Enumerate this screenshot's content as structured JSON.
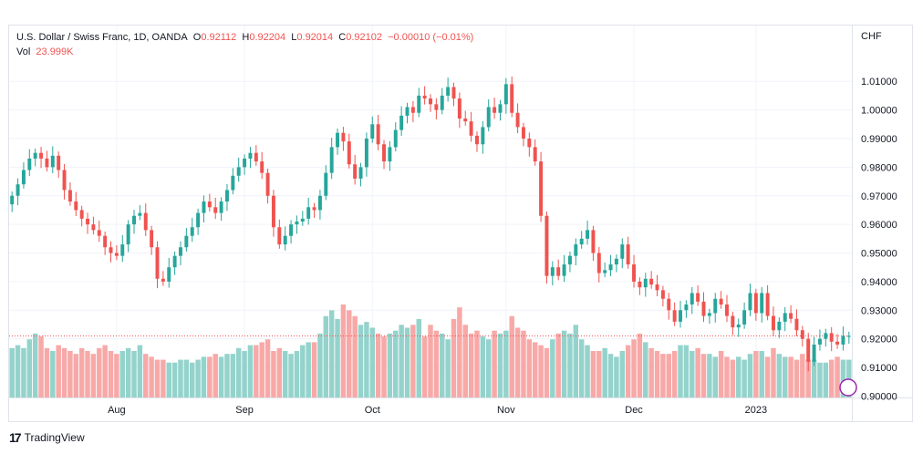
{
  "header": {
    "symbol": "U.S. Dollar / Swiss Franc, 1D, OANDA",
    "open_label": "O",
    "open": "0.92112",
    "high_label": "H",
    "high": "0.92204",
    "low_label": "L",
    "low": "0.92014",
    "close_label": "C",
    "close": "0.92102",
    "change": "−0.00010 (−0.01%)",
    "vol_label": "Vol",
    "vol": "23.999K"
  },
  "currency": "CHF",
  "footer": {
    "brand": "TradingView",
    "logo_icon": "tradingview-logo-icon"
  },
  "colors": {
    "up": "#26a69a",
    "down": "#ef5350",
    "up_vol": "#94d3cc",
    "down_vol": "#f7a9a8",
    "grid": "#f0f3fa"
  },
  "chart_data": {
    "type": "candlestick",
    "y_ticks": [
      "0.90000",
      "0.91000",
      "0.92000",
      "0.93000",
      "0.94000",
      "0.95000",
      "0.96000",
      "0.97000",
      "0.98000",
      "0.99000",
      "1.00000",
      "1.01000"
    ],
    "ylim": [
      0.8995,
      1.0225
    ],
    "x_ticks": [
      {
        "label": "Aug",
        "index": 18
      },
      {
        "label": "Sep",
        "index": 40
      },
      {
        "label": "Oct",
        "index": 62
      },
      {
        "label": "Nov",
        "index": 85
      },
      {
        "label": "Dec",
        "index": 107
      },
      {
        "label": "2023",
        "index": 128
      }
    ],
    "last_close": 0.92102,
    "closes": [
      0.97,
      0.974,
      0.979,
      0.983,
      0.985,
      0.983,
      0.98,
      0.984,
      0.979,
      0.972,
      0.968,
      0.965,
      0.962,
      0.96,
      0.958,
      0.956,
      0.952,
      0.95,
      0.949,
      0.953,
      0.96,
      0.963,
      0.964,
      0.958,
      0.952,
      0.941,
      0.94,
      0.945,
      0.949,
      0.952,
      0.956,
      0.959,
      0.964,
      0.968,
      0.966,
      0.964,
      0.968,
      0.972,
      0.977,
      0.98,
      0.983,
      0.985,
      0.982,
      0.978,
      0.97,
      0.959,
      0.953,
      0.956,
      0.96,
      0.961,
      0.962,
      0.966,
      0.965,
      0.97,
      0.978,
      0.987,
      0.992,
      0.989,
      0.981,
      0.976,
      0.98,
      0.99,
      0.995,
      0.988,
      0.982,
      0.987,
      0.993,
      0.998,
      1.001,
      0.999,
      1.005,
      1.004,
      1.002,
      1.0,
      1.005,
      1.008,
      1.004,
      0.997,
      0.996,
      0.991,
      0.988,
      0.994,
      1.001,
      0.999,
      1.002,
      1.009,
      0.999,
      0.994,
      0.99,
      0.987,
      0.982,
      0.963,
      0.942,
      0.945,
      0.942,
      0.946,
      0.949,
      0.953,
      0.955,
      0.958,
      0.95,
      0.943,
      0.944,
      0.946,
      0.948,
      0.953,
      0.946,
      0.94,
      0.938,
      0.941,
      0.939,
      0.937,
      0.934,
      0.93,
      0.926,
      0.93,
      0.932,
      0.936,
      0.933,
      0.928,
      0.929,
      0.934,
      0.932,
      0.928,
      0.924,
      0.925,
      0.93,
      0.936,
      0.929,
      0.936,
      0.928,
      0.923,
      0.926,
      0.929,
      0.927,
      0.923,
      0.92,
      0.912,
      0.918,
      0.92,
      0.922,
      0.919,
      0.918,
      0.921,
      0.921
    ],
    "volume_label": "Vol",
    "volumes": [
      17,
      18,
      17,
      20,
      22,
      21,
      17,
      16,
      18,
      17,
      16,
      15,
      17,
      16,
      15,
      17,
      18,
      16,
      15,
      16,
      17,
      16,
      18,
      15,
      14,
      13,
      13,
      12,
      12,
      13,
      13,
      12,
      13,
      14,
      14,
      15,
      14,
      15,
      15,
      17,
      16,
      18,
      18,
      19,
      20,
      16,
      17,
      16,
      15,
      16,
      18,
      19,
      19,
      22,
      28,
      30,
      27,
      32,
      30,
      28,
      25,
      26,
      24,
      22,
      21,
      22,
      23,
      25,
      24,
      25,
      27,
      21,
      25,
      23,
      22,
      20,
      27,
      31,
      25,
      22,
      23,
      21,
      20,
      23,
      22,
      23,
      28,
      24,
      23,
      20,
      19,
      18,
      17,
      20,
      22,
      23,
      22,
      25,
      20,
      18,
      16,
      16,
      17,
      15,
      14,
      16,
      18,
      20,
      22,
      19,
      17,
      16,
      15,
      15,
      16,
      18,
      18,
      16,
      17,
      15,
      15,
      14,
      16,
      14,
      13,
      14,
      13,
      15,
      16,
      16,
      14,
      17,
      15,
      14,
      14,
      13,
      15,
      13,
      13,
      12,
      12,
      13,
      14,
      13,
      13
    ]
  }
}
